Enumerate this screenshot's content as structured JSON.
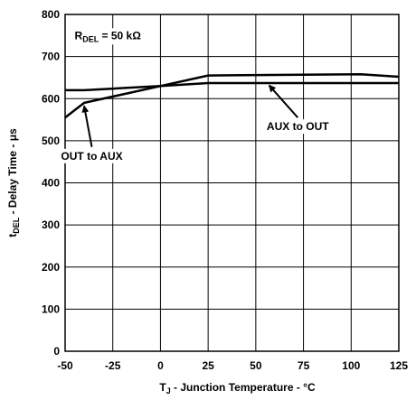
{
  "chart_data": {
    "type": "line",
    "annotation_box": {
      "main": "R",
      "sub": "DEL",
      "rest": " = 50 kΩ"
    },
    "xlabel": {
      "main": "T",
      "sub": "J",
      "rest": " - Junction Temperature - °C"
    },
    "ylabel": {
      "main": "t",
      "sub": "DEL",
      "rest": " - Delay Time - μs"
    },
    "xlim": [
      -50,
      125
    ],
    "ylim": [
      0,
      800
    ],
    "x_ticks": [
      -50,
      -25,
      0,
      25,
      50,
      75,
      100,
      125
    ],
    "x_tick_labels": [
      "-50",
      "-25",
      "0",
      "25",
      "50",
      "75",
      "100",
      "125"
    ],
    "y_ticks": [
      0,
      100,
      200,
      300,
      400,
      500,
      600,
      700,
      800
    ],
    "y_tick_labels": [
      "0",
      "100",
      "200",
      "300",
      "400",
      "500",
      "600",
      "700",
      "800"
    ],
    "grid": true,
    "series": [
      {
        "name": "OUT to AUX",
        "x": [
          -50,
          -40,
          0,
          25,
          105,
          125
        ],
        "y": [
          555,
          590,
          630,
          655,
          658,
          652
        ],
        "label_at": [
          -36,
          455
        ],
        "arrow_to": [
          -40,
          589
        ]
      },
      {
        "name": "AUX to OUT",
        "x": [
          -50,
          -40,
          0,
          25,
          125
        ],
        "y": [
          620,
          620,
          630,
          637,
          637
        ],
        "label_at": [
          72,
          525
        ],
        "arrow_to": [
          57,
          638
        ]
      }
    ]
  }
}
